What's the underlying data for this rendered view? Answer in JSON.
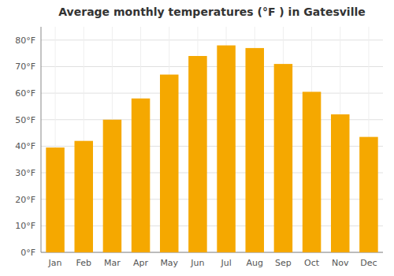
{
  "chart_data": {
    "type": "bar",
    "title": "Average monthly temperatures (°F ) in Gatesville",
    "categories": [
      "Jan",
      "Feb",
      "Mar",
      "Apr",
      "May",
      "Jun",
      "Jul",
      "Aug",
      "Sep",
      "Oct",
      "Nov",
      "Dec"
    ],
    "values": [
      39.5,
      42,
      50,
      58,
      67,
      74,
      78,
      77,
      71,
      60.5,
      52,
      43.5
    ],
    "color": "#F5A800",
    "ylim": [
      0,
      85
    ],
    "yticks": [
      {
        "value": 0,
        "label": "0°F"
      },
      {
        "value": 10,
        "label": "10°F"
      },
      {
        "value": 20,
        "label": "20°F"
      },
      {
        "value": 30,
        "label": "30°F"
      },
      {
        "value": 40,
        "label": "40°F"
      },
      {
        "value": 50,
        "label": "50°F"
      },
      {
        "value": 60,
        "label": "60°F"
      },
      {
        "value": 70,
        "label": "70°F"
      },
      {
        "value": 80,
        "label": "80°F"
      }
    ],
    "grid": true
  }
}
